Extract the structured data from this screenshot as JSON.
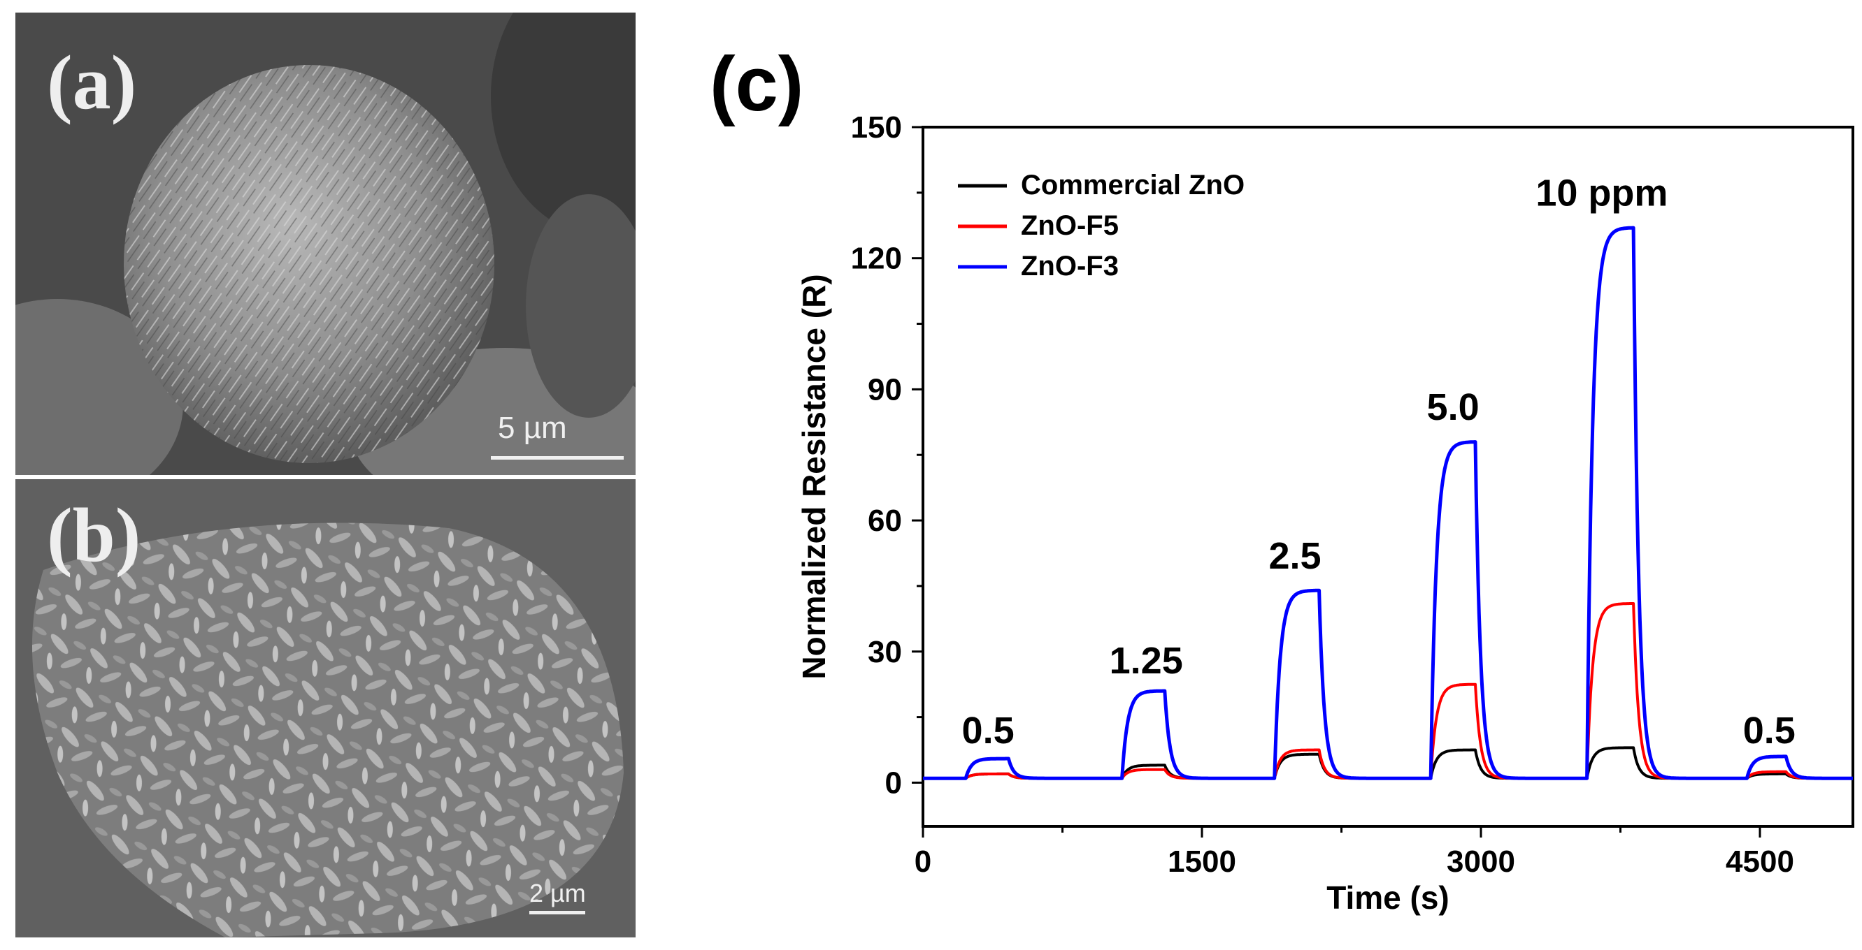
{
  "panels": {
    "a": {
      "label": "(a)",
      "scale_text": "5  µm"
    },
    "b": {
      "label": "(b)",
      "scale_text": "2 µm"
    },
    "c": {
      "label": "(c)"
    }
  },
  "chart_data": {
    "type": "line",
    "title": "",
    "xlabel": "Time (s)",
    "ylabel": "Normalized Resistance (R)",
    "xlim": [
      0,
      5000
    ],
    "ylim": [
      -10,
      150
    ],
    "xticks": [
      0,
      1500,
      3000,
      4500
    ],
    "yticks": [
      0,
      30,
      60,
      90,
      120,
      150
    ],
    "legend_position": "top-left",
    "concentration_labels": [
      {
        "text": "0.5",
        "x": 350,
        "y": 9
      },
      {
        "text": "1.25",
        "x": 1200,
        "y": 25
      },
      {
        "text": "2.5",
        "x": 2000,
        "y": 49
      },
      {
        "text": "5.0",
        "x": 2850,
        "y": 83
      },
      {
        "text": "10 ppm",
        "x": 3650,
        "y": 132
      },
      {
        "text": "0.5",
        "x": 4550,
        "y": 9
      }
    ],
    "pulses": [
      {
        "conc": "0.5",
        "on": 230,
        "off": 460
      },
      {
        "conc": "1.25",
        "on": 1070,
        "off": 1300
      },
      {
        "conc": "2.5",
        "on": 1890,
        "off": 2130
      },
      {
        "conc": "5.0",
        "on": 2730,
        "off": 2970
      },
      {
        "conc": "10 ppm",
        "on": 3570,
        "off": 3820
      },
      {
        "conc": "0.5",
        "on": 4430,
        "off": 4640
      }
    ],
    "baseline": 1,
    "series": [
      {
        "name": "Commercial ZnO",
        "color": "#000000",
        "peaks": [
          2,
          4,
          6.5,
          7.5,
          8,
          2
        ]
      },
      {
        "name": "ZnO-F5",
        "color": "#ff0000",
        "peaks": [
          2,
          3,
          7.5,
          22.5,
          41,
          2.5
        ]
      },
      {
        "name": "ZnO-F3",
        "color": "#0000ff",
        "peaks": [
          5.5,
          21,
          44,
          78,
          127,
          6
        ]
      }
    ]
  }
}
